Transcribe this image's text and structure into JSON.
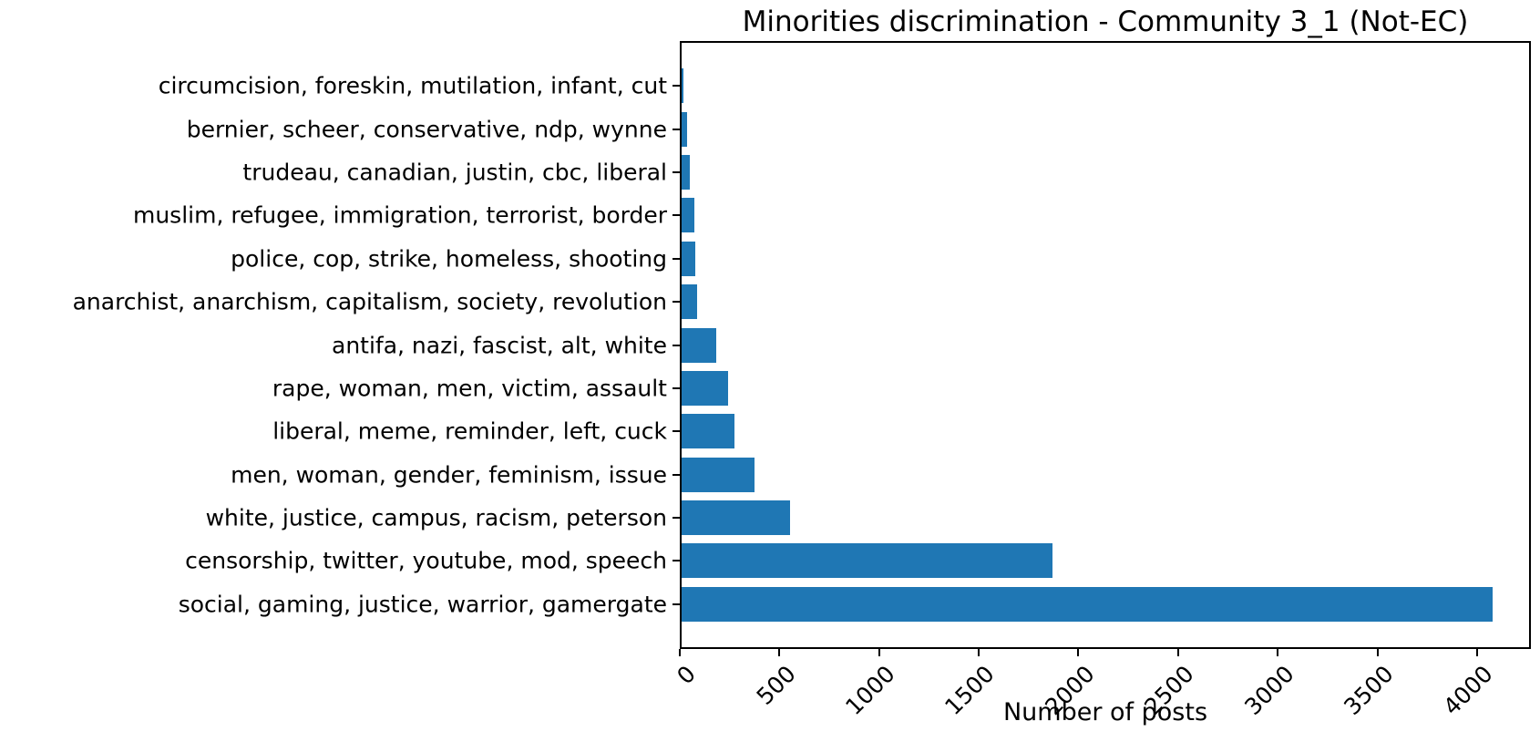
{
  "figure": {
    "background": "#ffffff",
    "text_color": "#000000",
    "axis_color": "#000000"
  },
  "chart_data": {
    "type": "bar",
    "orientation": "horizontal",
    "title": "Minorities discrimination - Community 3_1 (Not-EC)",
    "xlabel": "Number of posts",
    "ylabel": "",
    "categories": [
      "circumcision, foreskin, mutilation, infant, cut",
      "bernier, scheer, conservative, ndp, wynne",
      "trudeau, canadian, justin, cbc, liberal",
      "muslim, refugee, immigration, terrorist, border",
      "police, cop, strike, homeless, shooting",
      "anarchist, anarchism, capitalism, society, revolution",
      "antifa, nazi, fascist, alt, white",
      "rape, woman, men, victim, assault",
      "liberal, meme, reminder, left, cuck",
      "men, woman, gender, feminism, issue",
      "white, justice, campus, racism, peterson",
      "censorship, twitter, youtube, mod, speech",
      "social, gaming, justice, warrior, gamergate"
    ],
    "values": [
      10,
      27,
      41,
      64,
      69,
      79,
      175,
      232,
      264,
      366,
      545,
      1860,
      4067
    ],
    "xticks": [
      0,
      500,
      1000,
      1500,
      2000,
      2500,
      3000,
      3500,
      4000
    ],
    "xtick_rotation": 45,
    "xlim": [
      0,
      4270
    ],
    "bar_color": "#1f77b4",
    "grid": false,
    "legend": "none"
  }
}
